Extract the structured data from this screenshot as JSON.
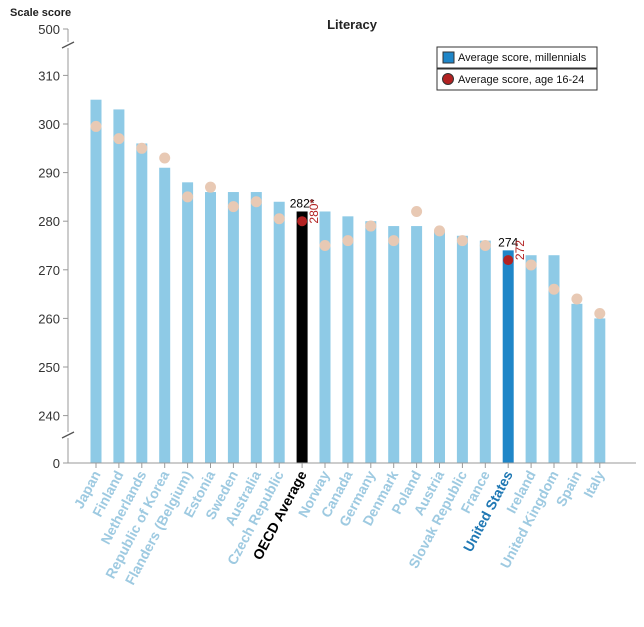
{
  "chart_data": {
    "type": "bar",
    "title": "Literacy",
    "ylabel": "Scale score",
    "ylim_broken": [
      230,
      310
    ],
    "ytick_labels": [
      "500",
      "310",
      "300",
      "290",
      "280",
      "270",
      "260",
      "250",
      "240",
      "0"
    ],
    "categories": [
      "Japan",
      "Finland",
      "Netherlands",
      "Republic of Korea",
      "Flanders (Belgium)",
      "Estonia",
      "Sweden",
      "Australia",
      "Czech Republic",
      "OECD Average",
      "Norway",
      "Canada",
      "Germany",
      "Denmark",
      "Poland",
      "Austria",
      "Slovak Republic",
      "France",
      "United States",
      "Ireland",
      "United Kingdom",
      "Spain",
      "Italy"
    ],
    "series": [
      {
        "name": "Average score, millennials",
        "type": "bar",
        "values": [
          305,
          303,
          296,
          291,
          288,
          286,
          286,
          286,
          284,
          282,
          282,
          281,
          280,
          279,
          279,
          278,
          277,
          276,
          274,
          273,
          273,
          263,
          260
        ]
      },
      {
        "name": "Average score, age 16-24",
        "type": "point",
        "values": [
          299.5,
          297,
          295,
          293,
          285,
          287,
          283,
          284,
          280.5,
          280,
          275,
          276,
          279,
          276,
          282,
          278,
          276,
          275,
          272,
          271,
          266,
          264,
          261
        ]
      }
    ],
    "highlights": {
      "OECD Average": {
        "bar_label": "282*",
        "point_label": "280*",
        "bar_color": "#000000",
        "point_color": "#b22222",
        "label_color": "#000000"
      },
      "United States": {
        "bar_label": "274",
        "point_label": "272",
        "bar_color": "#1f86c8",
        "point_color": "#b22222",
        "label_color": "#1f78b4"
      }
    },
    "colors": {
      "bar": "#8ecae6",
      "point": "#e8c9b4",
      "category_label": "#9ecae1",
      "axis": "#999999"
    },
    "legend": {
      "position": "top-right"
    },
    "grid": false
  }
}
